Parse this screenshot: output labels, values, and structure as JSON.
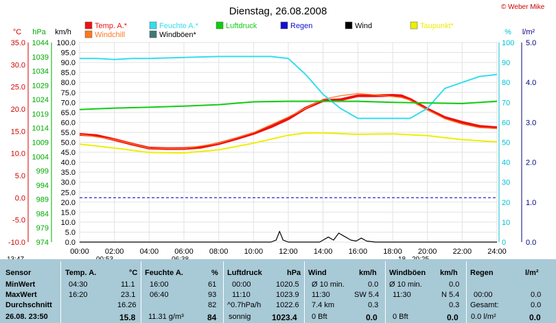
{
  "copyright": "© Weber Mike",
  "chart_data": {
    "type": "line",
    "title": "Dienstag, 26.08.2008",
    "x_ticks": [
      "00:00",
      "02:00",
      "04:00",
      "06:00",
      "08:00",
      "10:00",
      "12:00",
      "14:00",
      "16:00",
      "18:00",
      "20:00",
      "22:00",
      "24:00"
    ],
    "xlim_hours": [
      0,
      24
    ],
    "axes": {
      "temp_c": {
        "label": "°C",
        "ticks": [
          "35.0",
          "30.0",
          "25.0",
          "20.0",
          "15.0",
          "10.0",
          "5.0",
          "0.0",
          "-5.0",
          "-10.0"
        ],
        "range": [
          -10,
          35
        ],
        "color": "#d00000"
      },
      "pressure_hpa": {
        "label": "hPa",
        "ticks": [
          "1044",
          "1039",
          "1034",
          "1029",
          "1024",
          "1019",
          "1014",
          "1009",
          "1004",
          "999",
          "994",
          "989",
          "984",
          "979",
          "974"
        ],
        "range": [
          974,
          1044
        ],
        "color": "#00aa00"
      },
      "wind_kmh": {
        "label": "km/h",
        "ticks": [
          "100.0",
          "95.0",
          "90.0",
          "85.0",
          "80.0",
          "75.0",
          "70.0",
          "65.0",
          "60.0",
          "55.0",
          "50.0",
          "45.0",
          "40.0",
          "35.0",
          "30.0",
          "25.0",
          "20.0",
          "15.0",
          "10.0",
          "5.0",
          "0.0"
        ],
        "range": [
          0,
          100
        ],
        "color": "#000000"
      },
      "humidity_pct": {
        "label": "%",
        "ticks": [
          "100",
          "90",
          "80",
          "70",
          "60",
          "50",
          "40",
          "30",
          "20",
          "10",
          "0"
        ],
        "range": [
          0,
          100
        ],
        "color": "#00c0d0"
      },
      "rain_lm2": {
        "label": "l/m²",
        "ticks": [
          "5.0",
          "4.0",
          "3.0",
          "2.0",
          "1.0",
          "0.0"
        ],
        "range": [
          0,
          5
        ],
        "color": "#000080"
      }
    },
    "legend": [
      {
        "name": "Temp. A.*",
        "color": "#ee1111"
      },
      {
        "name": "Feuchte A.*",
        "color": "#33ddee"
      },
      {
        "name": "Luftdruck",
        "color": "#11cc11"
      },
      {
        "name": "Regen",
        "color": "#1111cc"
      },
      {
        "name": "Wind",
        "color": "#000000"
      },
      {
        "name": "Taupunkt*",
        "color": "#eeee00"
      },
      {
        "name": "Windchill",
        "color": "#ff7722"
      },
      {
        "name": "Windböen*",
        "color": "#447777"
      }
    ],
    "series": [
      {
        "name": "Temp. A.*",
        "axis": "temp_c",
        "color": "#ee1111",
        "x": [
          0,
          1,
          2,
          3,
          4,
          5,
          6,
          7,
          8,
          9,
          10,
          11,
          12,
          13,
          14,
          15,
          16,
          17,
          18,
          18.5,
          19,
          20,
          21,
          22,
          23,
          24
        ],
        "y": [
          14.3,
          14.0,
          13.1,
          12.1,
          11.2,
          11.1,
          11.1,
          11.4,
          12.2,
          13.3,
          14.5,
          16.0,
          17.8,
          20.2,
          21.9,
          22.1,
          23.0,
          23.0,
          23.1,
          23.0,
          22.2,
          20.0,
          18.1,
          17.0,
          16.1,
          15.8
        ]
      },
      {
        "name": "Windchill",
        "axis": "temp_c",
        "color": "#ff7722",
        "x": [
          0,
          2,
          4,
          6,
          8,
          10,
          12,
          14,
          15,
          16,
          17,
          18,
          18.5,
          19,
          20,
          21,
          22,
          23,
          24
        ],
        "y": [
          14.3,
          13.1,
          11.2,
          11.1,
          12.3,
          14.7,
          18.2,
          22.2,
          23.0,
          23.5,
          23.2,
          22.8,
          22.6,
          22.0,
          19.8,
          17.8,
          16.6,
          15.8,
          15.6
        ]
      },
      {
        "name": "Taupunkt*",
        "axis": "temp_c",
        "color": "#eeee00",
        "x": [
          0,
          2,
          4,
          6,
          8,
          10,
          12,
          13,
          14,
          16,
          18,
          20,
          22,
          24
        ],
        "y": [
          12.1,
          11.2,
          10.2,
          10.1,
          10.8,
          12.3,
          14.1,
          14.6,
          14.6,
          14.3,
          14.4,
          14.0,
          13.1,
          12.6
        ]
      },
      {
        "name": "Feuchte A.*",
        "axis": "humidity_pct",
        "color": "#33ddee",
        "x": [
          0,
          1,
          2,
          3,
          4,
          6,
          8,
          10,
          11,
          12,
          13,
          14,
          15,
          16,
          17,
          18,
          19,
          20,
          21,
          22,
          23,
          24
        ],
        "y": [
          92,
          92,
          91.5,
          92,
          92,
          92.5,
          93,
          93,
          93,
          92,
          84,
          74,
          67,
          62,
          62,
          62,
          62,
          67,
          77,
          80,
          83,
          84
        ]
      },
      {
        "name": "Luftdruck",
        "axis": "pressure_hpa",
        "color": "#11cc11",
        "x": [
          0,
          2,
          4,
          6,
          8,
          10,
          12,
          14,
          16,
          18,
          20,
          22,
          24
        ],
        "y": [
          1020.5,
          1021.0,
          1021.3,
          1021.7,
          1022.2,
          1023.2,
          1023.4,
          1023.4,
          1023.4,
          1023.0,
          1022.8,
          1022.6,
          1023.4
        ]
      },
      {
        "name": "Wind",
        "axis": "wind_kmh",
        "color": "#000000",
        "x": [
          0,
          11.0,
          11.3,
          11.5,
          11.7,
          12.0,
          13.8,
          14.0,
          14.3,
          14.6,
          14.9,
          15.2,
          15.6,
          15.9,
          16.2,
          16.5,
          17.0,
          24
        ],
        "y": [
          0,
          0,
          1,
          5.4,
          1,
          0,
          0,
          1,
          2.5,
          1,
          4.5,
          3,
          1,
          0.5,
          2,
          0.5,
          0,
          0
        ]
      }
    ],
    "reference_lines": [
      {
        "axis": "temp_c",
        "value": 0.0,
        "style": "dashed",
        "color": "#1111cc"
      }
    ],
    "markers": [
      "13:47",
      "00:53",
      "06:38",
      "18",
      "20:25"
    ]
  },
  "table": {
    "headers": {
      "sensor": "Sensor",
      "temp": "Temp. A.",
      "temp_unit": "°C",
      "hum": "Feuchte A.",
      "hum_unit": "%",
      "press": "Luftdruck",
      "press_unit": "hPa",
      "wind": "Wind",
      "wind_unit": "km/h",
      "gust": "Windböen",
      "gust_unit": "km/h",
      "rain": "Regen",
      "rain_unit": "l/m²"
    },
    "rows": {
      "min": {
        "label": "MinWert",
        "temp_time": "04:30",
        "temp_val": "11.1",
        "hum_time": "16:00",
        "hum_val": "61",
        "press_time": "00:00",
        "press_val": "1020.5",
        "wind_time": "Ø 10 min.",
        "wind_val": "0.0",
        "gust_time": "Ø 10 min.",
        "gust_val": "0.0",
        "rain_time": "",
        "rain_val": ""
      },
      "max": {
        "label": "MaxWert",
        "temp_time": "16:20",
        "temp_val": "23.1",
        "hum_time": "06:40",
        "hum_val": "93",
        "press_time": "11:10",
        "press_val": "1023.9",
        "wind_time": "11:30",
        "wind_val": "SW 5.4",
        "gust_time": "11:30",
        "gust_val": "N 5.4",
        "rain_time": "00:00",
        "rain_val": "0.0"
      },
      "avg": {
        "label": "Durchschnitt",
        "temp_time": "",
        "temp_val": "16.26",
        "hum_time": "",
        "hum_val": "82",
        "press_time": "^0.7hPa/h",
        "press_val": "1022.6",
        "wind_time": "7.4 km",
        "wind_val": "0.3",
        "gust_time": "",
        "gust_val": "0.3",
        "rain_time": "Gesamt:",
        "rain_val": "0.0"
      },
      "current": {
        "label": "26.08. 23:50",
        "temp_time": "",
        "temp_val": "15.8",
        "hum_time": "11.31 g/m³",
        "hum_val": "84",
        "press_time": "sonnig",
        "press_val": "1023.4",
        "wind_time": "0 Bft",
        "wind_val": "0.0",
        "gust_time": "0 Bft",
        "gust_val": "0.0",
        "rain_time": "0.0 l/m²",
        "rain_val": "0.0"
      }
    }
  }
}
